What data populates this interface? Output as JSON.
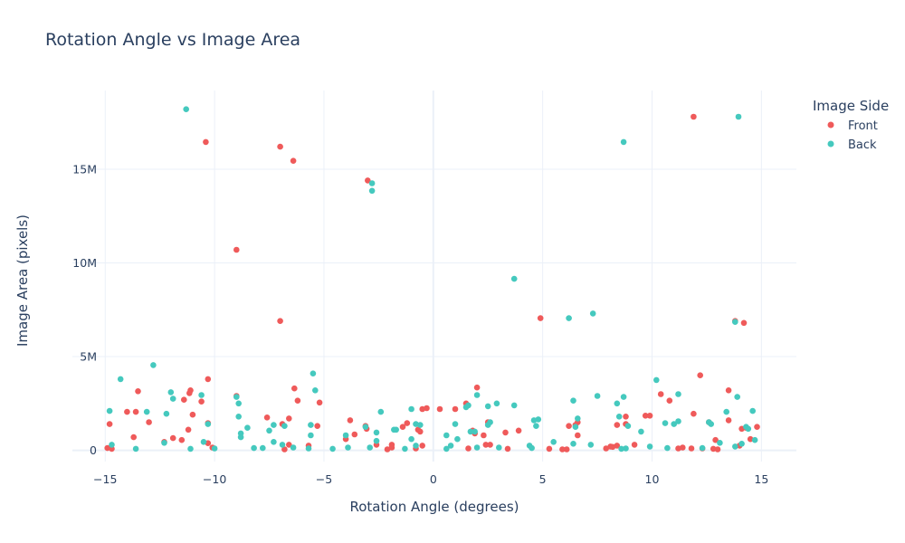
{
  "chart_data": {
    "type": "scatter",
    "title": "Rotation Angle vs Image Area",
    "xlabel": "Rotation Angle (degrees)",
    "ylabel": "Image Area (pixels)",
    "xlim": [
      -16.5,
      16.6
    ],
    "ylim": [
      -600000,
      19200000
    ],
    "x_ticks": [
      {
        "value": -15,
        "label": "−15"
      },
      {
        "value": -10,
        "label": "−10"
      },
      {
        "value": -5,
        "label": "−5"
      },
      {
        "value": 0,
        "label": "0"
      },
      {
        "value": 5,
        "label": "5"
      },
      {
        "value": 10,
        "label": "10"
      },
      {
        "value": 15,
        "label": "15"
      }
    ],
    "y_ticks": [
      {
        "value": 0,
        "label": "0"
      },
      {
        "value": 5000000,
        "label": "5M"
      },
      {
        "value": 10000000,
        "label": "10M"
      },
      {
        "value": 15000000,
        "label": "15M"
      }
    ],
    "grid": true,
    "legend": {
      "title": "Image Side",
      "position": "top-right"
    },
    "series": [
      {
        "name": "Front",
        "color": "#ef5a5a",
        "points": [
          [
            -14.9,
            120000
          ],
          [
            -14.8,
            1400000
          ],
          [
            -14.7,
            80000
          ],
          [
            -14.0,
            2050000
          ],
          [
            -13.7,
            700000
          ],
          [
            -13.6,
            2050000
          ],
          [
            -13.5,
            3150000
          ],
          [
            -13.0,
            1500000
          ],
          [
            -12.3,
            450000
          ],
          [
            -11.9,
            650000
          ],
          [
            -11.5,
            550000
          ],
          [
            -11.4,
            2700000
          ],
          [
            -11.2,
            1100000
          ],
          [
            -11.15,
            3050000
          ],
          [
            -11.1,
            3200000
          ],
          [
            -11.0,
            1900000
          ],
          [
            -10.6,
            2600000
          ],
          [
            -10.4,
            16450000
          ],
          [
            -10.3,
            3800000
          ],
          [
            -10.3,
            1450000
          ],
          [
            -10.3,
            380000
          ],
          [
            -10.1,
            150000
          ],
          [
            -9.0,
            10700000
          ],
          [
            -9.0,
            2900000
          ],
          [
            -7.6,
            1750000
          ],
          [
            -7.0,
            16200000
          ],
          [
            -7.0,
            6900000
          ],
          [
            -6.9,
            1400000
          ],
          [
            -6.8,
            50000
          ],
          [
            -6.6,
            1700000
          ],
          [
            -6.6,
            300000
          ],
          [
            -6.4,
            15450000
          ],
          [
            -6.35,
            3300000
          ],
          [
            -6.2,
            2650000
          ],
          [
            -5.7,
            250000
          ],
          [
            -5.3,
            1300000
          ],
          [
            -5.2,
            2550000
          ],
          [
            -4.0,
            600000
          ],
          [
            -3.8,
            1600000
          ],
          [
            -3.6,
            850000
          ],
          [
            -3.1,
            1300000
          ],
          [
            -3.05,
            1150000
          ],
          [
            -3.0,
            14400000
          ],
          [
            -2.6,
            300000
          ],
          [
            -2.1,
            50000
          ],
          [
            -1.9,
            300000
          ],
          [
            -1.9,
            150000
          ],
          [
            -1.4,
            1250000
          ],
          [
            -1.2,
            1450000
          ],
          [
            -0.8,
            100000
          ],
          [
            -0.7,
            1100000
          ],
          [
            -0.6,
            1000000
          ],
          [
            -0.5,
            2200000
          ],
          [
            -0.5,
            250000
          ],
          [
            -0.3,
            2250000
          ],
          [
            0.3,
            2200000
          ],
          [
            1.0,
            2200000
          ],
          [
            1.5,
            2500000
          ],
          [
            1.6,
            100000
          ],
          [
            1.8,
            1050000
          ],
          [
            1.9,
            900000
          ],
          [
            2.0,
            3350000
          ],
          [
            2.3,
            800000
          ],
          [
            2.4,
            300000
          ],
          [
            2.5,
            1500000
          ],
          [
            2.6,
            300000
          ],
          [
            3.3,
            950000
          ],
          [
            3.4,
            80000
          ],
          [
            3.9,
            1050000
          ],
          [
            4.9,
            7050000
          ],
          [
            5.3,
            80000
          ],
          [
            5.9,
            50000
          ],
          [
            6.1,
            50000
          ],
          [
            6.2,
            1300000
          ],
          [
            6.5,
            1350000
          ],
          [
            6.6,
            1500000
          ],
          [
            6.6,
            800000
          ],
          [
            7.9,
            100000
          ],
          [
            8.1,
            200000
          ],
          [
            8.2,
            180000
          ],
          [
            8.4,
            250000
          ],
          [
            8.4,
            1350000
          ],
          [
            8.8,
            1800000
          ],
          [
            8.8,
            1400000
          ],
          [
            9.2,
            300000
          ],
          [
            9.7,
            1850000
          ],
          [
            9.9,
            1850000
          ],
          [
            10.4,
            3000000
          ],
          [
            10.8,
            2650000
          ],
          [
            11.2,
            100000
          ],
          [
            11.4,
            150000
          ],
          [
            11.8,
            100000
          ],
          [
            11.9,
            1950000
          ],
          [
            11.9,
            17800000
          ],
          [
            12.2,
            4000000
          ],
          [
            12.3,
            100000
          ],
          [
            12.6,
            1500000
          ],
          [
            12.8,
            80000
          ],
          [
            12.9,
            550000
          ],
          [
            13.0,
            50000
          ],
          [
            13.5,
            1600000
          ],
          [
            13.5,
            3200000
          ],
          [
            13.8,
            6900000
          ],
          [
            14.0,
            250000
          ],
          [
            14.1,
            1150000
          ],
          [
            14.2,
            6800000
          ],
          [
            14.3,
            1200000
          ],
          [
            14.5,
            600000
          ],
          [
            14.8,
            1250000
          ]
        ]
      },
      {
        "name": "Back",
        "color": "#45c9be",
        "points": [
          [
            -14.8,
            2100000
          ],
          [
            -14.7,
            300000
          ],
          [
            -14.3,
            3800000
          ],
          [
            -13.6,
            80000
          ],
          [
            -13.1,
            2050000
          ],
          [
            -12.8,
            4550000
          ],
          [
            -12.3,
            400000
          ],
          [
            -12.2,
            1950000
          ],
          [
            -12.0,
            3100000
          ],
          [
            -11.9,
            2750000
          ],
          [
            -11.3,
            18200000
          ],
          [
            -11.1,
            80000
          ],
          [
            -10.6,
            2950000
          ],
          [
            -10.5,
            450000
          ],
          [
            -10.3,
            1400000
          ],
          [
            -10.0,
            100000
          ],
          [
            -9.0,
            2850000
          ],
          [
            -8.9,
            1800000
          ],
          [
            -8.9,
            2500000
          ],
          [
            -8.8,
            700000
          ],
          [
            -8.8,
            900000
          ],
          [
            -8.5,
            1200000
          ],
          [
            -8.2,
            120000
          ],
          [
            -7.8,
            120000
          ],
          [
            -7.5,
            1050000
          ],
          [
            -7.3,
            1350000
          ],
          [
            -7.3,
            450000
          ],
          [
            -6.9,
            300000
          ],
          [
            -6.8,
            1300000
          ],
          [
            -6.4,
            150000
          ],
          [
            -5.7,
            100000
          ],
          [
            -5.6,
            800000
          ],
          [
            -5.6,
            1350000
          ],
          [
            -5.5,
            4100000
          ],
          [
            -5.4,
            3200000
          ],
          [
            -4.6,
            80000
          ],
          [
            -4.0,
            800000
          ],
          [
            -3.9,
            150000
          ],
          [
            -3.1,
            1250000
          ],
          [
            -2.9,
            150000
          ],
          [
            -2.8,
            13850000
          ],
          [
            -2.8,
            14250000
          ],
          [
            -2.6,
            950000
          ],
          [
            -2.6,
            500000
          ],
          [
            -2.4,
            2050000
          ],
          [
            -1.8,
            1100000
          ],
          [
            -1.7,
            1100000
          ],
          [
            -1.3,
            80000
          ],
          [
            -1.0,
            2200000
          ],
          [
            -1.0,
            600000
          ],
          [
            -0.8,
            1400000
          ],
          [
            -0.8,
            250000
          ],
          [
            -0.6,
            1350000
          ],
          [
            0.6,
            800000
          ],
          [
            0.6,
            80000
          ],
          [
            0.8,
            250000
          ],
          [
            1.0,
            1400000
          ],
          [
            1.1,
            600000
          ],
          [
            1.5,
            2300000
          ],
          [
            1.6,
            2400000
          ],
          [
            1.7,
            1000000
          ],
          [
            1.9,
            1000000
          ],
          [
            2.0,
            2950000
          ],
          [
            2.0,
            150000
          ],
          [
            2.5,
            1350000
          ],
          [
            2.5,
            2350000
          ],
          [
            2.6,
            1500000
          ],
          [
            2.9,
            2500000
          ],
          [
            3.0,
            150000
          ],
          [
            3.7,
            9150000
          ],
          [
            3.7,
            2400000
          ],
          [
            4.4,
            250000
          ],
          [
            4.5,
            120000
          ],
          [
            4.6,
            1600000
          ],
          [
            4.7,
            1300000
          ],
          [
            4.8,
            1650000
          ],
          [
            5.5,
            450000
          ],
          [
            6.2,
            7050000
          ],
          [
            6.4,
            2650000
          ],
          [
            6.4,
            350000
          ],
          [
            6.5,
            1250000
          ],
          [
            6.6,
            1700000
          ],
          [
            7.2,
            300000
          ],
          [
            7.3,
            7300000
          ],
          [
            7.5,
            2900000
          ],
          [
            8.4,
            2500000
          ],
          [
            8.5,
            1800000
          ],
          [
            8.6,
            80000
          ],
          [
            8.7,
            2850000
          ],
          [
            8.7,
            16450000
          ],
          [
            8.8,
            100000
          ],
          [
            8.9,
            1300000
          ],
          [
            9.5,
            1000000
          ],
          [
            9.9,
            200000
          ],
          [
            10.2,
            3750000
          ],
          [
            10.6,
            1450000
          ],
          [
            10.7,
            120000
          ],
          [
            11.0,
            1400000
          ],
          [
            11.2,
            1550000
          ],
          [
            11.2,
            3000000
          ],
          [
            12.3,
            120000
          ],
          [
            12.6,
            1500000
          ],
          [
            12.7,
            1400000
          ],
          [
            13.1,
            400000
          ],
          [
            13.4,
            2050000
          ],
          [
            13.8,
            6850000
          ],
          [
            13.8,
            200000
          ],
          [
            13.9,
            2850000
          ],
          [
            13.95,
            17800000
          ],
          [
            14.1,
            350000
          ],
          [
            14.3,
            1250000
          ],
          [
            14.4,
            1150000
          ],
          [
            14.6,
            2100000
          ],
          [
            14.7,
            550000
          ]
        ]
      }
    ]
  }
}
